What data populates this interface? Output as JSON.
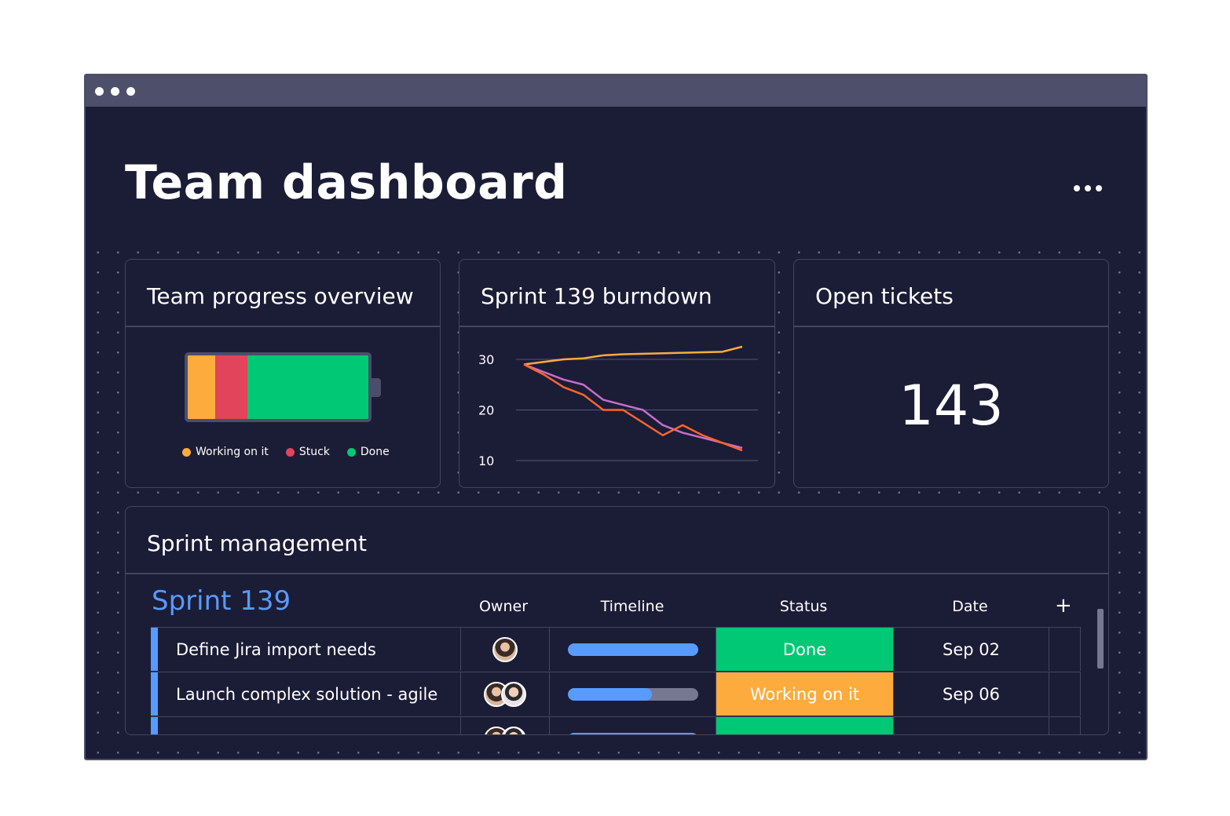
{
  "page": {
    "title": "Team dashboard",
    "more_icon": "more-horizontal-icon"
  },
  "cards": {
    "progress": {
      "title": "Team progress overview",
      "segments": [
        {
          "label": "Working on it",
          "fraction": 0.15,
          "color": "#fdab3d"
        },
        {
          "label": "Stuck",
          "fraction": 0.18,
          "color": "#e2445c"
        },
        {
          "label": "Done",
          "fraction": 0.67,
          "color": "#00c875"
        }
      ],
      "legend": [
        "Working on it",
        "Stuck",
        "Done"
      ]
    },
    "burndown": {
      "title": "Sprint 139 burndown"
    },
    "tickets": {
      "title": "Open tickets",
      "value": "143"
    }
  },
  "chart_data": {
    "type": "line",
    "title": "Sprint 139 burndown",
    "yticks": [
      "30",
      "20",
      "10"
    ],
    "ylim": [
      10,
      30
    ],
    "grid": true,
    "series": [
      {
        "color": "#fdab3d",
        "x": [
          0,
          1,
          2,
          3,
          4,
          5,
          6,
          7,
          8,
          9,
          10,
          11
        ],
        "values": [
          29,
          29.5,
          30,
          30.2,
          30.8,
          31,
          31.1,
          31.2,
          31.3,
          31.4,
          31.5,
          32.5
        ]
      },
      {
        "color": "#c56fc9",
        "x": [
          0,
          1,
          2,
          3,
          4,
          5,
          6,
          7,
          8,
          9,
          10,
          11
        ],
        "values": [
          29,
          27.5,
          26,
          25,
          22,
          21,
          20,
          17,
          15.5,
          14.5,
          13.5,
          12.5
        ]
      },
      {
        "color": "#ff642e",
        "x": [
          0,
          1,
          2,
          3,
          4,
          5,
          6,
          7,
          8,
          9,
          10,
          11
        ],
        "values": [
          29,
          27,
          24.5,
          23,
          20,
          20,
          17.5,
          15,
          17,
          15,
          13.5,
          12
        ]
      }
    ]
  },
  "sprint": {
    "card_title": "Sprint management",
    "group_name": "Sprint 139",
    "columns": {
      "owner": "Owner",
      "timeline": "Timeline",
      "status": "Status",
      "date": "Date"
    },
    "add_column_icon": "plus-icon",
    "rows": [
      {
        "task": "Define Jira import needs",
        "owners": 1,
        "timeline_progress": 1.0,
        "status": "Done",
        "status_color": "#00c875",
        "date": "Sep 02"
      },
      {
        "task": "Launch complex solution - agile",
        "owners": 2,
        "timeline_progress": 0.65,
        "status": "Working on it",
        "status_color": "#fdab3d",
        "date": "Sep 06"
      },
      {
        "task": "",
        "owners": 2,
        "timeline_progress": 1.0,
        "status": "",
        "status_color": "#00c875",
        "date": ""
      }
    ]
  }
}
